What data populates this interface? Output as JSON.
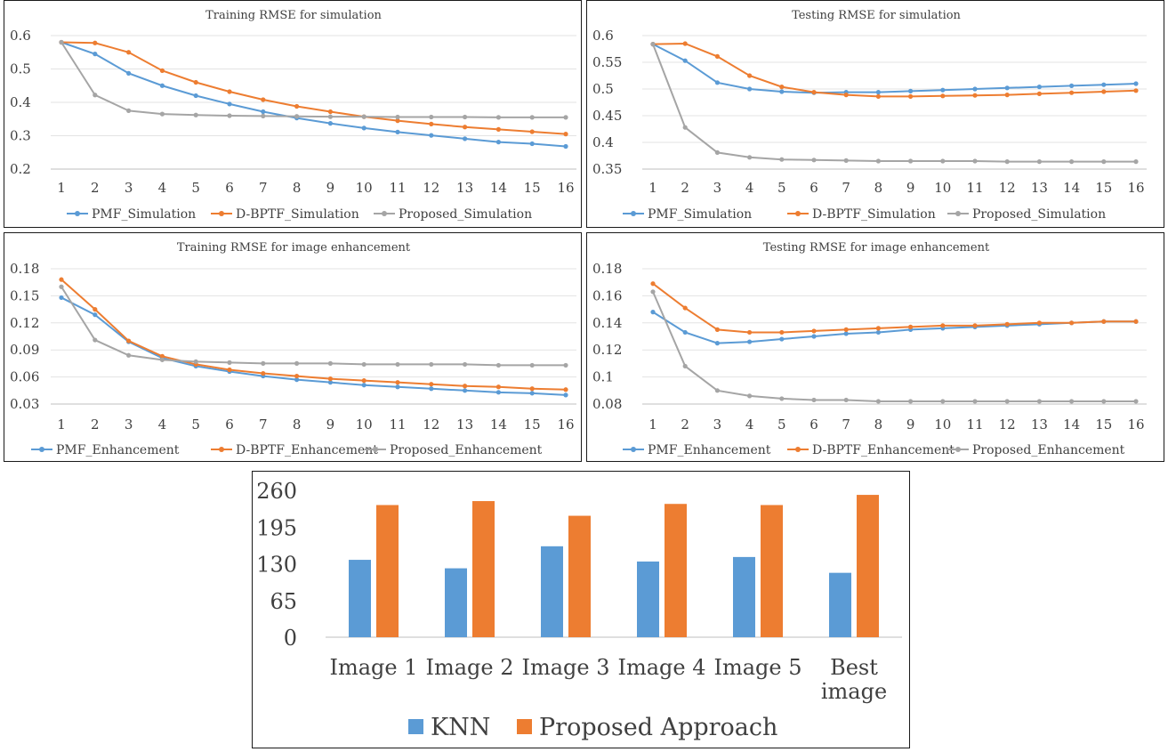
{
  "chart_data": [
    {
      "type": "line",
      "title": "Training RMSE for simulation",
      "x": [
        1,
        2,
        3,
        4,
        5,
        6,
        7,
        8,
        9,
        10,
        11,
        12,
        13,
        14,
        15,
        16
      ],
      "ylim": [
        0.2,
        0.6
      ],
      "yticks": [
        "0.2",
        "0.3",
        "0.4",
        "0.5",
        "0.6"
      ],
      "ytick_values": [
        0.2,
        0.3,
        0.4,
        0.5,
        0.6
      ],
      "grid": true,
      "legend_position": "bottom",
      "series": [
        {
          "name": "PMF_Simulation",
          "color": "#5b9bd5",
          "values": [
            0.58,
            0.545,
            0.487,
            0.45,
            0.42,
            0.395,
            0.372,
            0.353,
            0.337,
            0.323,
            0.311,
            0.301,
            0.291,
            0.281,
            0.276,
            0.268
          ]
        },
        {
          "name": "D-BPTF_Simulation",
          "color": "#ed7d31",
          "values": [
            0.58,
            0.578,
            0.55,
            0.495,
            0.46,
            0.432,
            0.408,
            0.388,
            0.372,
            0.357,
            0.345,
            0.335,
            0.326,
            0.319,
            0.312,
            0.305
          ]
        },
        {
          "name": "Proposed_Simulation",
          "color": "#a5a5a5",
          "values": [
            0.58,
            0.422,
            0.375,
            0.365,
            0.362,
            0.36,
            0.359,
            0.358,
            0.357,
            0.357,
            0.356,
            0.356,
            0.356,
            0.355,
            0.355,
            0.355
          ]
        }
      ]
    },
    {
      "type": "line",
      "title": "Testing RMSE for simulation",
      "x": [
        1,
        2,
        3,
        4,
        5,
        6,
        7,
        8,
        9,
        10,
        11,
        12,
        13,
        14,
        15,
        16
      ],
      "ylim": [
        0.35,
        0.6
      ],
      "yticks": [
        "0.35",
        "0.4",
        "0.45",
        "0.5",
        "0.55",
        "0.6"
      ],
      "ytick_values": [
        0.35,
        0.4,
        0.45,
        0.5,
        0.55,
        0.6
      ],
      "grid": true,
      "legend_position": "bottom",
      "series": [
        {
          "name": "PMF_Simulation",
          "color": "#5b9bd5",
          "values": [
            0.584,
            0.553,
            0.512,
            0.5,
            0.495,
            0.493,
            0.494,
            0.494,
            0.496,
            0.498,
            0.5,
            0.502,
            0.504,
            0.506,
            0.508,
            0.51
          ]
        },
        {
          "name": "D-BPTF_Simulation",
          "color": "#ed7d31",
          "values": [
            0.584,
            0.585,
            0.561,
            0.525,
            0.504,
            0.494,
            0.489,
            0.486,
            0.486,
            0.487,
            0.488,
            0.489,
            0.491,
            0.493,
            0.495,
            0.497
          ]
        },
        {
          "name": "Proposed_Simulation",
          "color": "#a5a5a5",
          "values": [
            0.584,
            0.428,
            0.381,
            0.372,
            0.368,
            0.367,
            0.366,
            0.365,
            0.365,
            0.365,
            0.365,
            0.364,
            0.364,
            0.364,
            0.364,
            0.364
          ]
        }
      ]
    },
    {
      "type": "line",
      "title": "Training RMSE for image enhancement",
      "x": [
        1,
        2,
        3,
        4,
        5,
        6,
        7,
        8,
        9,
        10,
        11,
        12,
        13,
        14,
        15,
        16
      ],
      "ylim": [
        0.03,
        0.18
      ],
      "yticks": [
        "0.03",
        "0.06",
        "0.09",
        "0.12",
        "0.15",
        "0.18"
      ],
      "ytick_values": [
        0.03,
        0.06,
        0.09,
        0.12,
        0.15,
        0.18
      ],
      "grid": true,
      "legend_position": "bottom",
      "series": [
        {
          "name": "PMF_Enhancement",
          "color": "#5b9bd5",
          "values": [
            0.148,
            0.129,
            0.099,
            0.081,
            0.072,
            0.066,
            0.061,
            0.057,
            0.054,
            0.051,
            0.049,
            0.047,
            0.045,
            0.043,
            0.042,
            0.04
          ]
        },
        {
          "name": "D-BPTF_Enhancement",
          "color": "#ed7d31",
          "values": [
            0.168,
            0.135,
            0.1,
            0.083,
            0.074,
            0.068,
            0.064,
            0.061,
            0.058,
            0.056,
            0.054,
            0.052,
            0.05,
            0.049,
            0.047,
            0.046
          ]
        },
        {
          "name": "Proposed_Enhancement",
          "color": "#a5a5a5",
          "values": [
            0.16,
            0.101,
            0.084,
            0.079,
            0.077,
            0.076,
            0.075,
            0.075,
            0.075,
            0.074,
            0.074,
            0.074,
            0.074,
            0.073,
            0.073,
            0.073
          ]
        }
      ]
    },
    {
      "type": "line",
      "title": "Testing RMSE for image enhancement",
      "x": [
        1,
        2,
        3,
        4,
        5,
        6,
        7,
        8,
        9,
        10,
        11,
        12,
        13,
        14,
        15,
        16
      ],
      "ylim": [
        0.08,
        0.18
      ],
      "yticks": [
        "0.08",
        "0.1",
        "0.12",
        "0.14",
        "0.16",
        "0.18"
      ],
      "ytick_values": [
        0.08,
        0.1,
        0.12,
        0.14,
        0.16,
        0.18
      ],
      "grid": true,
      "legend_position": "bottom",
      "series": [
        {
          "name": "PMF_Enhancement",
          "color": "#5b9bd5",
          "values": [
            0.148,
            0.133,
            0.125,
            0.126,
            0.128,
            0.13,
            0.132,
            0.133,
            0.135,
            0.136,
            0.137,
            0.138,
            0.139,
            0.14,
            0.141,
            0.141
          ]
        },
        {
          "name": "D-BPTF_Enhancement",
          "color": "#ed7d31",
          "values": [
            0.169,
            0.151,
            0.135,
            0.133,
            0.133,
            0.134,
            0.135,
            0.136,
            0.137,
            0.138,
            0.138,
            0.139,
            0.14,
            0.14,
            0.141,
            0.141
          ]
        },
        {
          "name": "Proposed_Enhancement",
          "color": "#a5a5a5",
          "values": [
            0.163,
            0.108,
            0.09,
            0.086,
            0.084,
            0.083,
            0.083,
            0.082,
            0.082,
            0.082,
            0.082,
            0.082,
            0.082,
            0.082,
            0.082,
            0.082
          ]
        }
      ]
    },
    {
      "type": "bar",
      "categories": [
        "Image 1",
        "Image 2",
        "Image 3",
        "Image 4",
        "Image 5",
        "Best image"
      ],
      "ylim": [
        0,
        260
      ],
      "yticks": [
        "0",
        "65",
        "130",
        "195",
        "260"
      ],
      "ytick_values": [
        0,
        65,
        130,
        195,
        260
      ],
      "grid": false,
      "legend_position": "bottom",
      "series": [
        {
          "name": "KNN",
          "color": "#5b9bd5",
          "values": [
            137,
            122,
            161,
            134,
            142,
            114
          ]
        },
        {
          "name": "Proposed Approach",
          "color": "#ed7d31",
          "values": [
            234,
            241,
            215,
            236,
            234,
            252
          ]
        }
      ]
    }
  ]
}
